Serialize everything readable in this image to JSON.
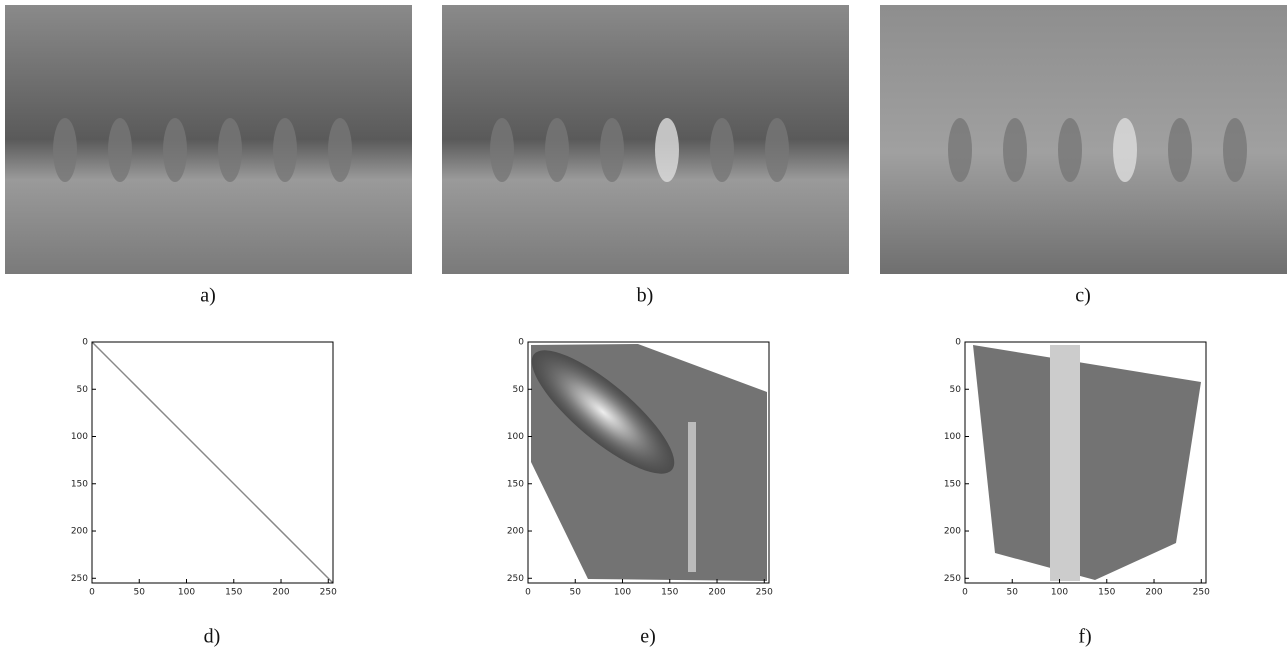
{
  "panels": [
    {
      "label": "a)"
    },
    {
      "label": "b)"
    },
    {
      "label": "c)"
    },
    {
      "label": "d)",
      "xlim": [
        0,
        255
      ],
      "ylim": [
        0,
        255
      ],
      "xticks": [
        0,
        50,
        100,
        150,
        200,
        250
      ],
      "yticks": [
        0,
        50,
        100,
        150,
        200,
        250
      ]
    },
    {
      "label": "e)",
      "xlim": [
        0,
        255
      ],
      "ylim": [
        0,
        255
      ],
      "xticks": [
        0,
        50,
        100,
        150,
        200,
        250
      ],
      "yticks": [
        0,
        50,
        100,
        150,
        200,
        250
      ]
    },
    {
      "label": "f)",
      "xlim": [
        0,
        255
      ],
      "ylim": [
        0,
        255
      ],
      "xticks": [
        0,
        50,
        100,
        150,
        200,
        250
      ],
      "yticks": [
        0,
        50,
        100,
        150,
        200,
        250
      ]
    }
  ]
}
